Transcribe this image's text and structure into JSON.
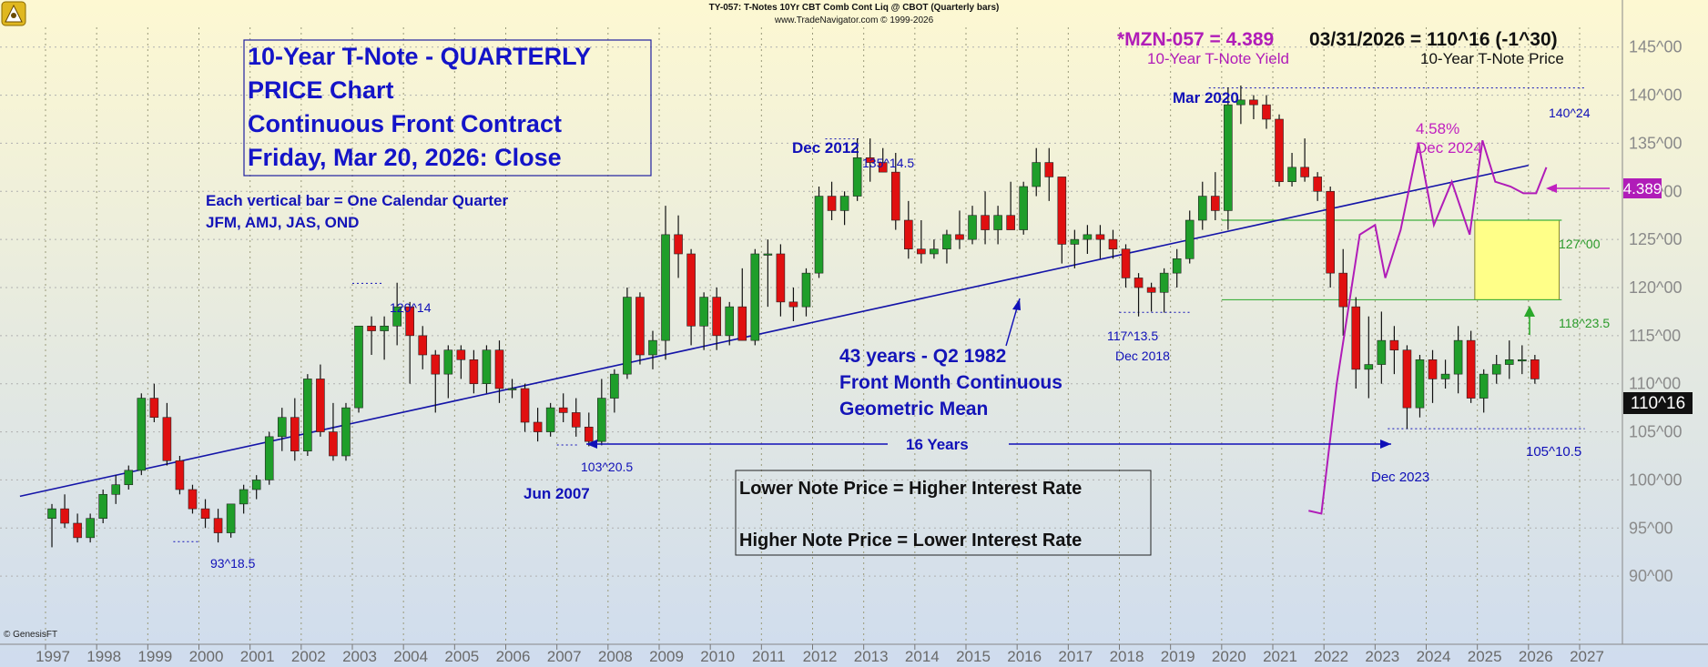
{
  "colors": {
    "bg_top": "#fdf8d2",
    "bg_bottom": "#cfdcee",
    "up": "#1f9e2a",
    "down": "#e01010",
    "wick": "#111111",
    "trend": "#1414a8",
    "yield": "#b01cb8",
    "annot_blue": "#1010b8",
    "green_line": "#3fb03f",
    "box_fill": "#ffff88",
    "box_stroke": "#8a8a2a",
    "magenta": "#c020c0"
  },
  "header": {
    "line1": "TY-057:  T-Notes 10Yr CBT Comb Cont Liq @ CBOT  (Quarterly bars)",
    "line2": "www.TradeNavigator.com © 1999-2026"
  },
  "title_box": {
    "line1": "10-Year T-Note - QUARTERLY",
    "line2": "PRICE Chart",
    "line3": "Continuous Front Contract",
    "line4": "Friday, Mar 20, 2026: Close"
  },
  "bar_note": {
    "line1": "Each vertical bar = One Calendar Quarter",
    "line2": "JFM, AMJ, JAS, OND"
  },
  "legend": {
    "yield_readout": "*MZN-057 = 4.389",
    "price_readout": "03/31/2026 = 110^16 (-1^30)",
    "yield_label": "10-Year T-Note Yield",
    "price_label": "10-Year T-Note Price"
  },
  "annotations": {
    "a_120_14": "120^14",
    "a_93_18": "93^18.5",
    "a_103_20": "103^20.5",
    "jun2007": "Jun 2007",
    "dec2012": "Dec 2012",
    "a_135_14": "135^14.5",
    "mar2020": "Mar 2020",
    "a_140_24": "140^24",
    "pct": "4.58%",
    "dec2024": "Dec 2024",
    "a_127": "127^00",
    "a_118_23": "118^23.5",
    "a_117_13": "117^13.5",
    "dec2018": "Dec 2018",
    "a_105_10": "105^10.5",
    "dec2023": "Dec 2023",
    "sixteen": "16 Years",
    "mean1": "43 years - Q2 1982",
    "mean2": "Front Month Continuous",
    "mean3": "Geometric Mean",
    "rate1": "Lower Note Price = Higher Interest Rate",
    "rate2": "Higher Note Price = Lower Interest Rate",
    "yield_badge": "4.389",
    "price_badge": "110^16",
    "genesis": "© GenesisFT"
  },
  "chart_data": {
    "type": "candlestick",
    "ylim": [
      85,
      148
    ],
    "yticks": [
      "90^00",
      "95^00",
      "100^00",
      "105^00",
      "110^00",
      "115^00",
      "120^00",
      "125^00",
      "130^00",
      "135^00",
      "140^00",
      "145^00"
    ],
    "ytick_values": [
      90,
      95,
      100,
      105,
      110,
      115,
      120,
      125,
      130,
      135,
      140,
      145
    ],
    "xlim": [
      1996.6,
      2027.6
    ],
    "xticks": [
      "1997",
      "1998",
      "1999",
      "2000",
      "2001",
      "2002",
      "2003",
      "2004",
      "2005",
      "2006",
      "2007",
      "2008",
      "2009",
      "2010",
      "2011",
      "2012",
      "2013",
      "2014",
      "2015",
      "2016",
      "2017",
      "2018",
      "2019",
      "2020",
      "2021",
      "2022",
      "2023",
      "2024",
      "2025",
      "2026",
      "2027"
    ],
    "xtick_values": [
      1997,
      1998,
      1999,
      2000,
      2001,
      2002,
      2003,
      2004,
      2005,
      2006,
      2007,
      2008,
      2009,
      2010,
      2011,
      2012,
      2013,
      2014,
      2015,
      2016,
      2017,
      2018,
      2019,
      2020,
      2021,
      2022,
      2023,
      2024,
      2025,
      2026,
      2027
    ],
    "candle_start": 1997.0,
    "candle_step": 0.25,
    "candles": [
      [
        96.0,
        97.5,
        93.0,
        97.0
      ],
      [
        97.0,
        98.5,
        95.0,
        95.5
      ],
      [
        95.5,
        96.5,
        93.5,
        94.0
      ],
      [
        94.0,
        96.5,
        93.5,
        96.0
      ],
      [
        96.0,
        99.0,
        95.5,
        98.5
      ],
      [
        98.5,
        100.5,
        97.5,
        99.5
      ],
      [
        99.5,
        101.5,
        99.0,
        101.0
      ],
      [
        101.0,
        109.0,
        100.5,
        108.5
      ],
      [
        108.5,
        110.0,
        106.0,
        106.5
      ],
      [
        106.5,
        108.0,
        101.5,
        102.0
      ],
      [
        102.0,
        102.5,
        98.5,
        99.0
      ],
      [
        99.0,
        99.5,
        96.5,
        97.0
      ],
      [
        97.0,
        98.0,
        95.0,
        96.0
      ],
      [
        96.0,
        97.0,
        93.5,
        94.5
      ],
      [
        94.5,
        97.5,
        94.0,
        97.5
      ],
      [
        97.5,
        99.5,
        96.5,
        99.0
      ],
      [
        99.0,
        100.5,
        98.0,
        100.0
      ],
      [
        100.0,
        105.0,
        99.5,
        104.5
      ],
      [
        104.5,
        107.5,
        103.0,
        106.5
      ],
      [
        106.5,
        108.5,
        102.0,
        103.0
      ],
      [
        103.0,
        111.0,
        102.5,
        110.5
      ],
      [
        110.5,
        112.0,
        104.5,
        105.0
      ],
      [
        105.0,
        108.0,
        102.0,
        102.5
      ],
      [
        102.5,
        108.0,
        102.0,
        107.5
      ],
      [
        107.5,
        116.0,
        107.0,
        116.0
      ],
      [
        116.0,
        117.0,
        113.0,
        115.5
      ],
      [
        115.5,
        117.0,
        112.5,
        116.0
      ],
      [
        116.0,
        120.5,
        114.0,
        118.0
      ],
      [
        118.0,
        118.5,
        110.0,
        115.0
      ],
      [
        115.0,
        116.0,
        111.5,
        113.0
      ],
      [
        113.0,
        113.5,
        107.0,
        111.0
      ],
      [
        111.0,
        114.0,
        108.5,
        113.5
      ],
      [
        113.5,
        114.0,
        110.5,
        112.5
      ],
      [
        112.5,
        113.5,
        109.0,
        110.0
      ],
      [
        110.0,
        114.0,
        109.0,
        113.5
      ],
      [
        113.5,
        114.5,
        108.0,
        109.5
      ],
      [
        109.5,
        110.5,
        108.5,
        109.5
      ],
      [
        109.5,
        110.0,
        105.0,
        106.0
      ],
      [
        106.0,
        107.5,
        104.0,
        105.0
      ],
      [
        105.0,
        108.0,
        104.5,
        107.5
      ],
      [
        107.5,
        109.0,
        106.0,
        107.0
      ],
      [
        107.0,
        108.5,
        104.5,
        105.5
      ],
      [
        105.5,
        107.0,
        103.5,
        104.0
      ],
      [
        104.0,
        110.5,
        103.6,
        108.5
      ],
      [
        108.5,
        111.5,
        107.0,
        111.0
      ],
      [
        111.0,
        120.0,
        110.5,
        119.0
      ],
      [
        119.0,
        119.5,
        112.0,
        113.0
      ],
      [
        113.0,
        115.5,
        111.5,
        114.5
      ],
      [
        114.5,
        128.5,
        112.5,
        125.5
      ],
      [
        125.5,
        127.5,
        121.0,
        123.5
      ],
      [
        123.5,
        124.0,
        114.0,
        116.0
      ],
      [
        116.0,
        119.5,
        113.5,
        119.0
      ],
      [
        119.0,
        120.0,
        113.5,
        115.0
      ],
      [
        115.0,
        118.5,
        114.0,
        118.0
      ],
      [
        118.0,
        122.0,
        114.5,
        114.5
      ],
      [
        114.5,
        124.0,
        114.0,
        123.5
      ],
      [
        123.5,
        125.0,
        118.0,
        123.5
      ],
      [
        123.5,
        124.5,
        117.0,
        118.5
      ],
      [
        118.5,
        120.0,
        116.5,
        118.0
      ],
      [
        118.0,
        122.0,
        117.0,
        121.5
      ],
      [
        121.5,
        130.5,
        121.0,
        129.5
      ],
      [
        129.5,
        131.0,
        127.0,
        128.0
      ],
      [
        128.0,
        130.0,
        126.5,
        129.5
      ],
      [
        129.5,
        135.5,
        129.0,
        133.5
      ],
      [
        133.5,
        135.5,
        131.0,
        133.0
      ],
      [
        133.0,
        134.5,
        132.0,
        132.0
      ],
      [
        132.0,
        134.0,
        126.0,
        127.0
      ],
      [
        127.0,
        129.0,
        123.0,
        124.0
      ],
      [
        124.0,
        127.0,
        122.5,
        123.5
      ],
      [
        123.5,
        125.0,
        123.0,
        124.0
      ],
      [
        124.0,
        126.0,
        122.5,
        125.5
      ],
      [
        125.5,
        128.0,
        124.0,
        125.0
      ],
      [
        125.0,
        128.5,
        124.5,
        127.5
      ],
      [
        127.5,
        130.0,
        124.5,
        126.0
      ],
      [
        126.0,
        128.5,
        124.5,
        127.5
      ],
      [
        127.5,
        131.0,
        126.0,
        126.0
      ],
      [
        126.0,
        131.0,
        125.5,
        130.5
      ],
      [
        130.5,
        134.5,
        129.5,
        133.0
      ],
      [
        133.0,
        134.5,
        129.0,
        131.5
      ],
      [
        131.5,
        131.5,
        122.5,
        124.5
      ],
      [
        124.5,
        126.0,
        122.0,
        125.0
      ],
      [
        125.0,
        126.5,
        123.5,
        125.5
      ],
      [
        125.5,
        126.5,
        123.0,
        125.0
      ],
      [
        125.0,
        126.0,
        123.0,
        124.0
      ],
      [
        124.0,
        124.5,
        120.0,
        121.0
      ],
      [
        121.0,
        121.5,
        117.0,
        120.0
      ],
      [
        120.0,
        120.5,
        117.5,
        119.5
      ],
      [
        119.5,
        122.0,
        117.4,
        121.5
      ],
      [
        121.5,
        124.0,
        120.0,
        123.0
      ],
      [
        123.0,
        128.0,
        122.5,
        127.0
      ],
      [
        127.0,
        131.0,
        126.0,
        129.5
      ],
      [
        129.5,
        132.0,
        127.0,
        128.0
      ],
      [
        128.0,
        140.8,
        126.0,
        139.0
      ],
      [
        139.0,
        141.0,
        137.0,
        139.5
      ],
      [
        139.5,
        140.0,
        137.5,
        139.0
      ],
      [
        139.0,
        140.0,
        136.5,
        137.5
      ],
      [
        137.5,
        138.0,
        130.5,
        131.0
      ],
      [
        131.0,
        134.0,
        130.5,
        132.5
      ],
      [
        132.5,
        135.5,
        131.0,
        131.5
      ],
      [
        131.5,
        132.0,
        129.0,
        130.0
      ],
      [
        130.0,
        130.5,
        120.0,
        121.5
      ],
      [
        121.5,
        124.0,
        115.0,
        118.0
      ],
      [
        118.0,
        119.0,
        109.5,
        111.5
      ],
      [
        111.5,
        117.0,
        108.5,
        112.0
      ],
      [
        112.0,
        117.5,
        110.0,
        114.5
      ],
      [
        114.5,
        116.0,
        111.0,
        113.5
      ],
      [
        113.5,
        114.0,
        105.3,
        107.5
      ],
      [
        107.5,
        113.0,
        106.5,
        112.5
      ],
      [
        112.5,
        113.5,
        108.0,
        110.5
      ],
      [
        110.5,
        112.5,
        109.5,
        111.0
      ],
      [
        111.0,
        116.0,
        109.0,
        114.5
      ],
      [
        114.5,
        115.5,
        108.0,
        108.5
      ],
      [
        108.5,
        111.5,
        107.0,
        111.0
      ],
      [
        111.0,
        113.0,
        110.0,
        112.0
      ],
      [
        112.0,
        114.5,
        110.5,
        112.5
      ],
      [
        112.5,
        114.0,
        111.0,
        112.5
      ],
      [
        112.5,
        113.0,
        110.0,
        110.5
      ]
    ],
    "trendline": {
      "x": [
        1996.5,
        2026.0
      ],
      "y": [
        98.3,
        132.7
      ]
    },
    "yield_series": {
      "name": "10-Year T-Note Yield",
      "points": [
        [
          2021.7,
          96.8
        ],
        [
          2021.95,
          96.5
        ],
        [
          2022.25,
          110.0
        ],
        [
          2022.7,
          125.5
        ],
        [
          2023.0,
          126.5
        ],
        [
          2023.2,
          121.0
        ],
        [
          2023.5,
          126.0
        ],
        [
          2023.85,
          135.0
        ],
        [
          2024.15,
          126.5
        ],
        [
          2024.5,
          131.0
        ],
        [
          2024.85,
          125.5
        ],
        [
          2025.1,
          135.3
        ],
        [
          2025.35,
          131.0
        ],
        [
          2025.65,
          130.5
        ],
        [
          2025.9,
          129.8
        ],
        [
          2026.15,
          129.8
        ],
        [
          2026.35,
          132.5
        ]
      ]
    },
    "reference_lines": [
      {
        "y": 140.75,
        "x0": 2019.75,
        "x1": 2027.1,
        "kind": "dotted",
        "label": "140^24"
      },
      {
        "y": 135.45,
        "x0": 2012.25,
        "x1": 2012.9,
        "kind": "dotted",
        "label": "135^14.5"
      },
      {
        "y": 120.44,
        "x0": 2003.0,
        "x1": 2003.6,
        "kind": "dotted",
        "label": "120^14"
      },
      {
        "y": 117.42,
        "x0": 2018.0,
        "x1": 2019.4,
        "kind": "dotted",
        "label": "117^13.5"
      },
      {
        "y": 105.33,
        "x0": 2023.25,
        "x1": 2027.1,
        "kind": "dotted",
        "label": "105^10.5"
      },
      {
        "y": 103.64,
        "x0": 2007.0,
        "x1": 2007.4,
        "kind": "dotted",
        "label": "103^20.5"
      },
      {
        "y": 93.58,
        "x0": 1999.5,
        "x1": 2000.0,
        "kind": "dotted",
        "label": "93^18.5"
      },
      {
        "y": 127.0,
        "x0": 2020.0,
        "x1": 2026.65,
        "kind": "solid",
        "label": "127^00"
      },
      {
        "y": 118.73,
        "x0": 2020.0,
        "x1": 2026.65,
        "kind": "solid",
        "label": "118^23.5"
      }
    ],
    "box": {
      "x0": 2024.95,
      "x1": 2026.6,
      "y0": 118.73,
      "y1": 127.0
    }
  }
}
